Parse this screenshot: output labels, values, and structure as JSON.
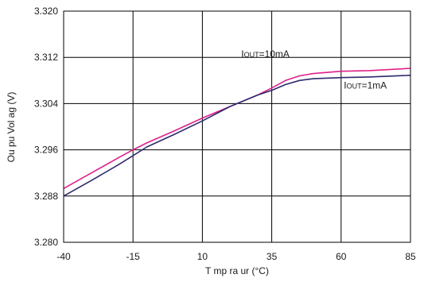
{
  "chart_data": {
    "type": "line",
    "title": "",
    "xlabel": "T  mp  ra ur  (°C)",
    "ylabel": "Ou pu  Vol ag  (V)",
    "xlim": [
      -40,
      85
    ],
    "ylim": [
      3.28,
      3.32
    ],
    "x_ticks": [
      -40,
      -15,
      10,
      35,
      60,
      85
    ],
    "x_tick_labels": [
      "-40",
      "-15",
      "10",
      "35",
      "60",
      "85"
    ],
    "y_ticks": [
      3.28,
      3.288,
      3.296,
      3.304,
      3.312,
      3.32
    ],
    "y_tick_labels": [
      "3.280",
      "3.288",
      "3.296",
      "3.304",
      "3.312",
      "3.320"
    ],
    "grid": true,
    "legend": "none",
    "series": [
      {
        "name": "IOUT=10mA",
        "color": "#e0208a",
        "x": [
          -40,
          -30,
          -20,
          -15,
          -10,
          0,
          10,
          20,
          30,
          35,
          40,
          45,
          50,
          60,
          70,
          85
        ],
        "y": [
          3.2893,
          3.292,
          3.2947,
          3.296,
          3.2972,
          3.2993,
          3.3015,
          3.3035,
          3.3055,
          3.3067,
          3.308,
          3.3088,
          3.3092,
          3.3096,
          3.3097,
          3.3101
        ]
      },
      {
        "name": "IOUT=1mA",
        "color": "#2e2a6e",
        "x": [
          -40,
          -30,
          -20,
          -15,
          -10,
          0,
          10,
          20,
          30,
          35,
          40,
          45,
          50,
          60,
          70,
          85
        ],
        "y": [
          3.288,
          3.2907,
          3.2935,
          3.295,
          3.2965,
          3.2987,
          3.301,
          3.3035,
          3.3055,
          3.3063,
          3.3073,
          3.308,
          3.3083,
          3.3085,
          3.3086,
          3.3089
        ]
      }
    ],
    "annotations": [
      {
        "series": 0,
        "prefix": "I",
        "sub": "OUT",
        "suffix": "=10mA",
        "x": 24,
        "y": 3.312
      },
      {
        "series": 1,
        "prefix": "I",
        "sub": "OUT",
        "suffix": "=1mA",
        "x": 61,
        "y": 3.3066
      }
    ]
  }
}
